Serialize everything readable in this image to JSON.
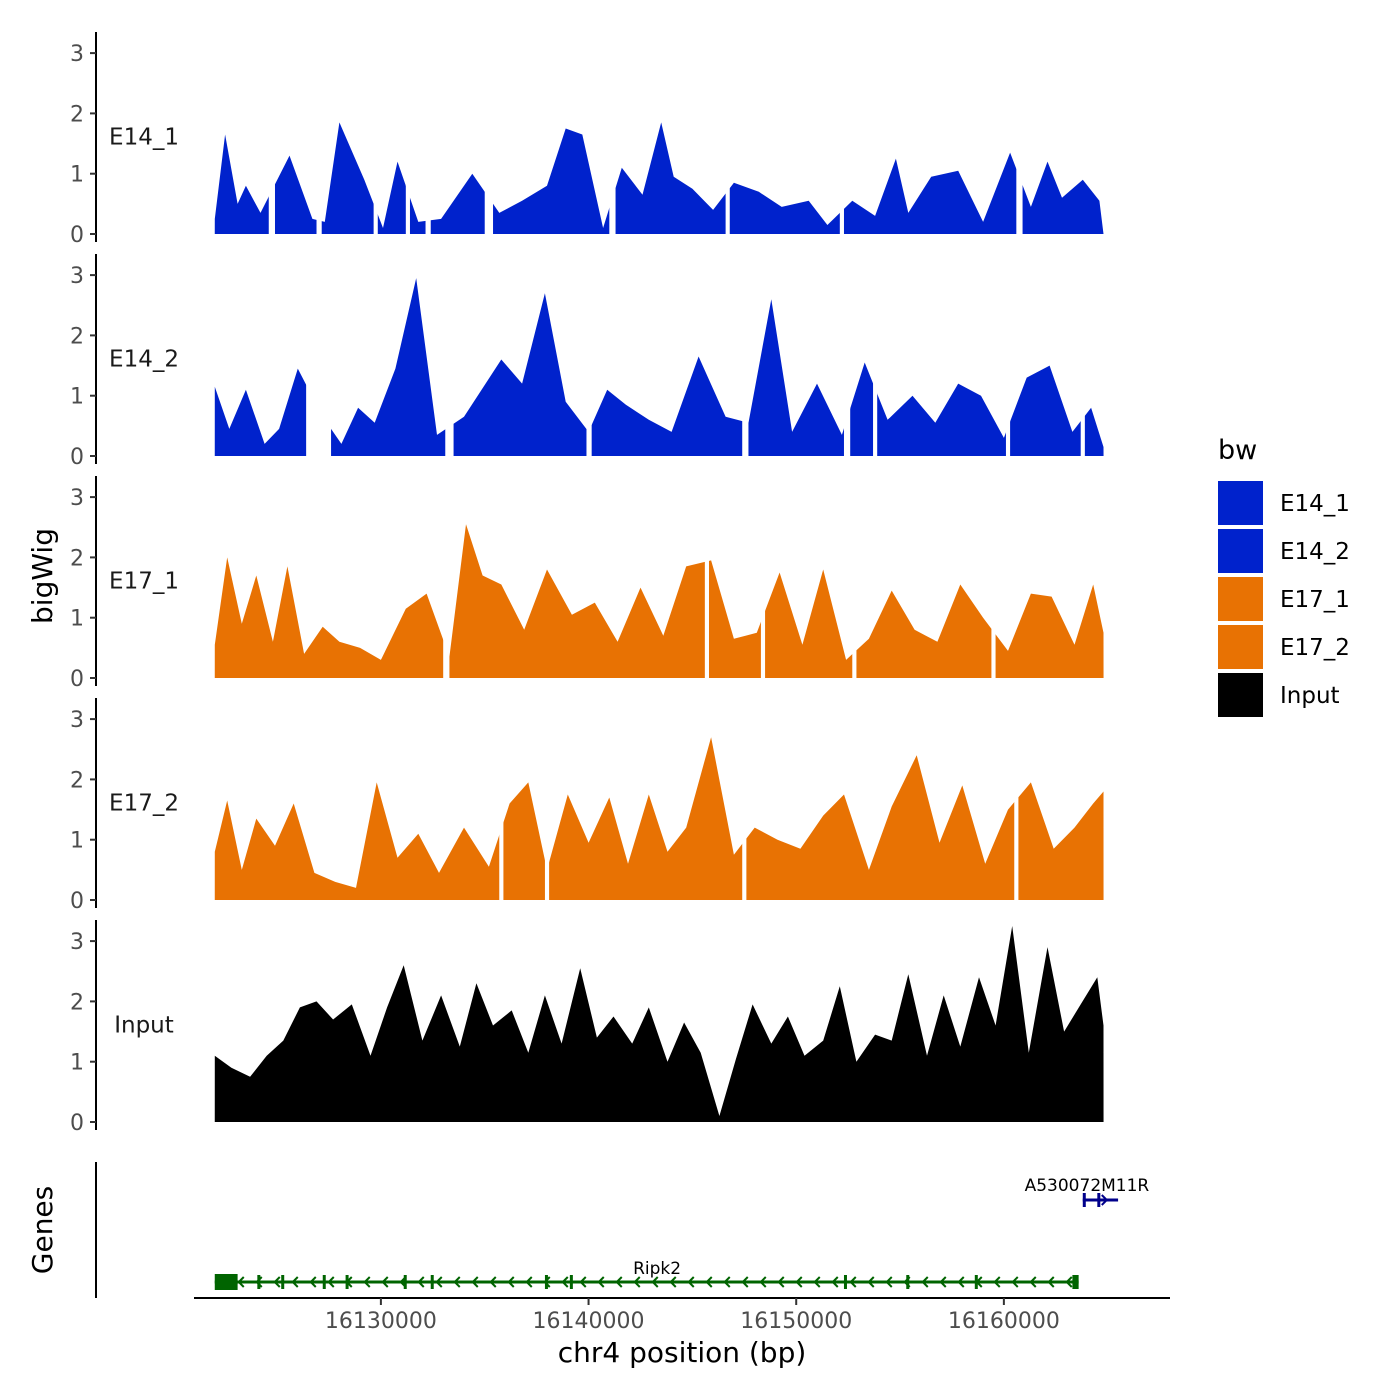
{
  "chart_data": {
    "type": "area",
    "title": "",
    "xlabel": "chr4 position (bp)",
    "ylabel": "bigWig",
    "genes_label": "Genes",
    "xlim": [
      16121000,
      16168000
    ],
    "x_ticks": [
      16130000,
      16140000,
      16150000,
      16160000
    ],
    "x_tick_labels": [
      "16130000",
      "16140000",
      "16150000",
      "16160000"
    ],
    "ylim": [
      0,
      3.35
    ],
    "y_ticks": [
      0,
      1,
      2,
      3
    ],
    "y_tick_labels": [
      "0",
      "1",
      "2",
      "3"
    ],
    "legend": {
      "title": "bw",
      "position": "right",
      "entries": [
        {
          "label": "E14_1",
          "color": "#0022cc"
        },
        {
          "label": "E14_2",
          "color": "#0022cc"
        },
        {
          "label": "E17_1",
          "color": "#e87203"
        },
        {
          "label": "E17_2",
          "color": "#e87203"
        },
        {
          "label": "Input",
          "color": "#000000"
        }
      ]
    },
    "series": [
      {
        "name": "E14_1",
        "color": "#0022cc",
        "x": [
          16122000,
          16122500,
          16123100,
          16123500,
          16124200,
          16125600,
          16126700,
          16127300,
          16128000,
          16129200,
          16130100,
          16130800,
          16131800,
          16132900,
          16134400,
          16135700,
          16136800,
          16138000,
          16138900,
          16139700,
          16140700,
          16141600,
          16142600,
          16143500,
          16144100,
          16145000,
          16146000,
          16147000,
          16148200,
          16149300,
          16150600,
          16151500,
          16152700,
          16153800,
          16154800,
          16155400,
          16156500,
          16157800,
          16159000,
          16160300,
          16161300,
          16162100,
          16162800,
          16163800,
          16164600,
          16164800
        ],
        "values": [
          0.25,
          1.65,
          0.5,
          0.8,
          0.35,
          1.3,
          0.25,
          0.2,
          1.85,
          0.9,
          0.1,
          1.2,
          0.2,
          0.25,
          1.0,
          0.35,
          0.55,
          0.8,
          1.75,
          1.65,
          0.1,
          1.1,
          0.65,
          1.85,
          0.95,
          0.75,
          0.4,
          0.85,
          0.7,
          0.45,
          0.55,
          0.15,
          0.55,
          0.3,
          1.25,
          0.35,
          0.95,
          1.05,
          0.2,
          1.35,
          0.45,
          1.2,
          0.6,
          0.9,
          0.55,
          0.0
        ],
        "gaps": [
          [
            16124600,
            16124900
          ],
          [
            16126900,
            16127150
          ],
          [
            16129650,
            16129850
          ],
          [
            16131200,
            16131400
          ],
          [
            16132150,
            16132400
          ],
          [
            16135000,
            16135400
          ],
          [
            16141000,
            16141300
          ],
          [
            16146600,
            16146800
          ],
          [
            16152100,
            16152300
          ],
          [
            16160600,
            16160900
          ]
        ]
      },
      {
        "name": "E14_2",
        "color": "#0022cc",
        "x": [
          16122000,
          16122700,
          16123500,
          16124400,
          16125100,
          16126000,
          16127200,
          16128100,
          16128900,
          16129700,
          16130700,
          16131700,
          16132700,
          16134000,
          16135800,
          16136800,
          16137900,
          16138900,
          16140000,
          16140900,
          16141800,
          16142900,
          16144000,
          16145300,
          16146600,
          16147700,
          16148800,
          16149800,
          16151000,
          16152200,
          16153300,
          16154400,
          16155600,
          16156700,
          16157800,
          16158900,
          16160000,
          16161100,
          16162200,
          16163300,
          16164200,
          16164800
        ],
        "values": [
          1.15,
          0.45,
          1.1,
          0.2,
          0.45,
          1.45,
          0.65,
          0.2,
          0.8,
          0.55,
          1.45,
          2.95,
          0.35,
          0.65,
          1.6,
          1.2,
          2.7,
          0.9,
          0.4,
          1.1,
          0.85,
          0.6,
          0.4,
          1.65,
          0.65,
          0.55,
          2.6,
          0.4,
          1.2,
          0.35,
          1.55,
          0.6,
          1.0,
          0.55,
          1.2,
          1.0,
          0.3,
          1.3,
          1.5,
          0.4,
          0.8,
          0.15
        ],
        "gaps": [
          [
            16126400,
            16127600
          ],
          [
            16133100,
            16133500
          ],
          [
            16139900,
            16140150
          ],
          [
            16147400,
            16147700
          ],
          [
            16152300,
            16152600
          ],
          [
            16153700,
            16153900
          ],
          [
            16160100,
            16160300
          ],
          [
            16163700,
            16163900
          ]
        ]
      },
      {
        "name": "E17_1",
        "color": "#e87203",
        "x": [
          16122000,
          16122600,
          16123300,
          16124000,
          16124800,
          16125500,
          16126300,
          16127200,
          16128000,
          16129000,
          16130000,
          16131200,
          16132200,
          16133300,
          16134100,
          16134900,
          16135800,
          16136900,
          16138000,
          16139200,
          16140300,
          16141400,
          16142500,
          16143600,
          16144700,
          16145900,
          16147000,
          16148100,
          16149200,
          16150300,
          16151300,
          16152400,
          16153500,
          16154600,
          16155700,
          16156800,
          16157900,
          16159000,
          16160200,
          16161300,
          16162300,
          16163400,
          16164300,
          16164800
        ],
        "values": [
          0.55,
          2.0,
          0.9,
          1.7,
          0.6,
          1.85,
          0.4,
          0.85,
          0.6,
          0.5,
          0.3,
          1.15,
          1.4,
          0.35,
          2.55,
          1.7,
          1.55,
          0.8,
          1.8,
          1.05,
          1.25,
          0.6,
          1.5,
          0.7,
          1.85,
          1.95,
          0.65,
          0.75,
          1.75,
          0.55,
          1.8,
          0.3,
          0.65,
          1.45,
          0.8,
          0.6,
          1.55,
          1.0,
          0.45,
          1.4,
          1.35,
          0.55,
          1.55,
          0.75
        ],
        "gaps": [
          [
            16133000,
            16133300
          ],
          [
            16145600,
            16145800
          ],
          [
            16148300,
            16148500
          ],
          [
            16152700,
            16152900
          ],
          [
            16159400,
            16159600
          ]
        ]
      },
      {
        "name": "E17_2",
        "color": "#e87203",
        "x": [
          16122000,
          16122600,
          16123300,
          16124000,
          16124900,
          16125800,
          16126800,
          16127800,
          16128800,
          16129800,
          16130800,
          16131800,
          16132800,
          16134000,
          16135200,
          16136200,
          16137100,
          16138000,
          16139000,
          16140000,
          16141000,
          16141900,
          16142900,
          16143800,
          16144700,
          16145900,
          16147000,
          16148000,
          16149100,
          16150200,
          16151300,
          16152300,
          16153500,
          16154600,
          16155800,
          16156900,
          16158000,
          16159100,
          16160200,
          16161300,
          16162400,
          16163400,
          16164300,
          16164800
        ],
        "values": [
          0.8,
          1.65,
          0.5,
          1.35,
          0.9,
          1.6,
          0.45,
          0.3,
          0.2,
          1.95,
          0.7,
          1.1,
          0.45,
          1.2,
          0.55,
          1.6,
          1.95,
          0.5,
          1.75,
          0.95,
          1.7,
          0.6,
          1.75,
          0.8,
          1.2,
          2.7,
          0.75,
          1.2,
          1.0,
          0.85,
          1.4,
          1.75,
          0.5,
          1.55,
          2.4,
          0.95,
          1.9,
          0.6,
          1.5,
          1.95,
          0.85,
          1.2,
          1.6,
          1.8
        ],
        "gaps": [
          [
            16135700,
            16135900
          ],
          [
            16137900,
            16138100
          ],
          [
            16147400,
            16147600
          ],
          [
            16160500,
            16160700
          ]
        ]
      },
      {
        "name": "Input",
        "color": "#000000",
        "x": [
          16122000,
          16122800,
          16123700,
          16124500,
          16125300,
          16126100,
          16126900,
          16127700,
          16128600,
          16129500,
          16130300,
          16131100,
          16132000,
          16132900,
          16133800,
          16134600,
          16135400,
          16136300,
          16137100,
          16137900,
          16138700,
          16139600,
          16140400,
          16141200,
          16142100,
          16142900,
          16143800,
          16144600,
          16145400,
          16146300,
          16147100,
          16147900,
          16148800,
          16149600,
          16150400,
          16151300,
          16152100,
          16152900,
          16153800,
          16154600,
          16155400,
          16156300,
          16157100,
          16157900,
          16158800,
          16159600,
          16160400,
          16161200,
          16162100,
          16162900,
          16163700,
          16164500,
          16164800
        ],
        "values": [
          1.1,
          0.9,
          0.75,
          1.1,
          1.35,
          1.9,
          2.0,
          1.7,
          1.95,
          1.1,
          1.9,
          2.6,
          1.35,
          2.1,
          1.25,
          2.3,
          1.6,
          1.85,
          1.15,
          2.1,
          1.3,
          2.55,
          1.4,
          1.75,
          1.3,
          1.9,
          1.0,
          1.65,
          1.15,
          0.1,
          1.05,
          1.95,
          1.3,
          1.75,
          1.1,
          1.35,
          2.25,
          1.0,
          1.45,
          1.35,
          2.45,
          1.1,
          2.1,
          1.25,
          2.4,
          1.6,
          3.25,
          1.15,
          2.9,
          1.5,
          1.95,
          2.4,
          1.6
        ],
        "gaps": []
      }
    ],
    "genes": [
      {
        "name": "Ripk2",
        "color": "#006400",
        "strand": "-",
        "row": 2,
        "start": 16122000,
        "end": 16163600,
        "exons": [
          [
            16122000,
            16123100
          ],
          [
            16124050,
            16124150
          ],
          [
            16125200,
            16125250
          ],
          [
            16127200,
            16127250
          ],
          [
            16128300,
            16128350
          ],
          [
            16131100,
            16131180
          ],
          [
            16132400,
            16132450
          ],
          [
            16137900,
            16137970
          ],
          [
            16139100,
            16139150
          ],
          [
            16152300,
            16152380
          ],
          [
            16155300,
            16155360
          ],
          [
            16158600,
            16158680
          ],
          [
            16163300,
            16163600
          ]
        ]
      },
      {
        "name": "A530072M11Rik",
        "color": "#00008b",
        "strand": "+",
        "row": 1,
        "start": 16163800,
        "end": 16165500,
        "exons": [
          [
            16163800,
            16163860
          ],
          [
            16164500,
            16164560
          ]
        ]
      }
    ],
    "gene_labels": [
      {
        "text": "Ripk2",
        "x": 16143300
      },
      {
        "text": "A530072M11R",
        "x": 16164000
      }
    ]
  }
}
